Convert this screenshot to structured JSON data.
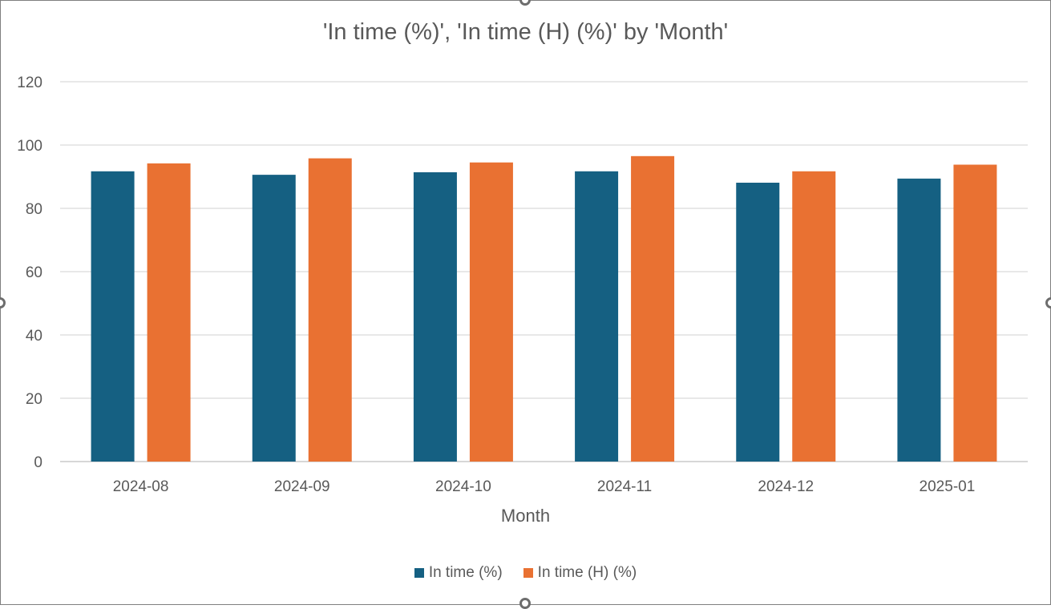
{
  "chart_data": {
    "type": "bar",
    "title": "'In time (%)', 'In time (H) (%)' by 'Month'",
    "xlabel": "Month",
    "ylabel": "",
    "categories": [
      "2024-08",
      "2024-09",
      "2024-10",
      "2024-11",
      "2024-12",
      "2025-01"
    ],
    "series": [
      {
        "name": "In time (%)",
        "color": "#156082",
        "values": [
          91.7,
          90.6,
          91.4,
          91.7,
          88.1,
          89.4
        ]
      },
      {
        "name": "In time (H) (%)",
        "color": "#e97132",
        "values": [
          94.2,
          95.8,
          94.5,
          96.5,
          91.7,
          93.8
        ]
      }
    ],
    "ylim": [
      0,
      120
    ],
    "yticks": [
      "0",
      "20",
      "40",
      "60",
      "80",
      "100",
      "120"
    ],
    "grid": true,
    "legend_position": "bottom"
  }
}
